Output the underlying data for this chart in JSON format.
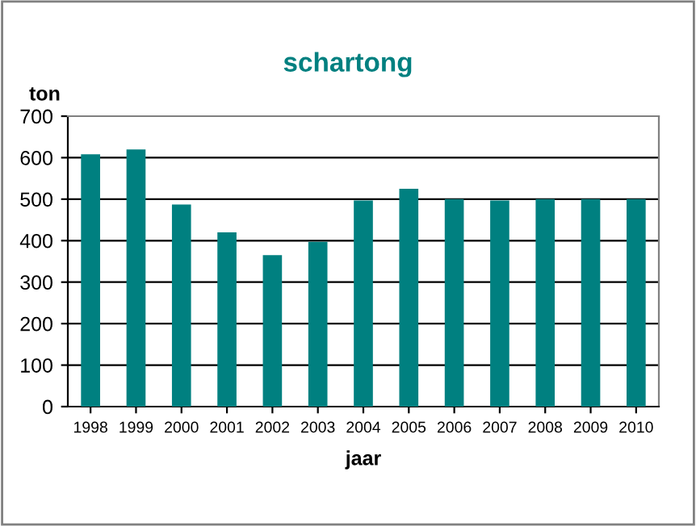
{
  "chart_data": {
    "type": "bar",
    "title": "schartong",
    "ylabel": "ton",
    "xlabel": "jaar",
    "categories": [
      "1998",
      "1999",
      "2000",
      "2001",
      "2002",
      "2003",
      "2004",
      "2005",
      "2006",
      "2007",
      "2008",
      "2009",
      "2010"
    ],
    "values": [
      608,
      620,
      487,
      420,
      365,
      397,
      497,
      525,
      500,
      497,
      500,
      500,
      500
    ],
    "color": "#008080",
    "ylim": [
      0,
      700
    ],
    "yticks": [
      0,
      100,
      200,
      300,
      400,
      500,
      600,
      700
    ],
    "grid": "y"
  }
}
